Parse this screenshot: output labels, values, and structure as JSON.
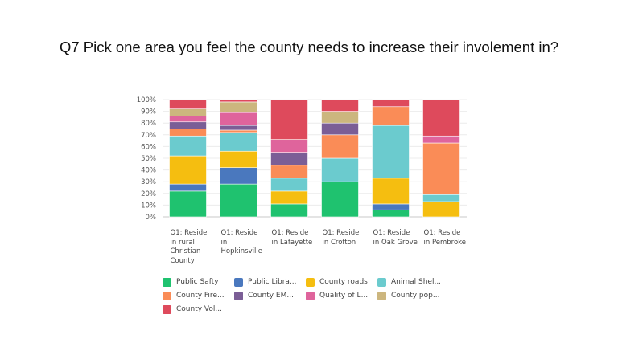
{
  "title": "Q7 Pick one area you feel the county needs to increase their involement in?",
  "chart_data": {
    "type": "bar",
    "stacked": true,
    "title": "Q7 Pick one area you feel the county needs to increase their involement in?",
    "ylim": [
      0,
      100
    ],
    "yticks": [
      "0%",
      "10%",
      "20%",
      "30%",
      "40%",
      "50%",
      "60%",
      "70%",
      "80%",
      "90%",
      "100%"
    ],
    "grid": true,
    "legend_position": "bottom",
    "categories": [
      "Q1: Reside in rural Christian County",
      "Q1: Reside in Hopkinsville",
      "Q1: Reside in Lafayette",
      "Q1: Reside in Crofton",
      "Q1: Reside in Oak Grove",
      "Q1: Reside in Pembroke"
    ],
    "series": [
      {
        "name": "Public Safty",
        "color": "#1FC26F",
        "values": [
          22,
          28,
          11,
          30,
          6,
          0
        ]
      },
      {
        "name": "Public Libra...",
        "color": "#4A78BE",
        "values": [
          6,
          14,
          0,
          0,
          5,
          0
        ]
      },
      {
        "name": "County roads",
        "color": "#F5BE10",
        "values": [
          24,
          14,
          11,
          0,
          22,
          13
        ]
      },
      {
        "name": "Animal Shel...",
        "color": "#6BCBCE",
        "values": [
          17,
          16,
          11,
          20,
          45,
          6
        ]
      },
      {
        "name": "County Fire...",
        "color": "#FA8C57",
        "values": [
          6,
          2,
          11,
          20,
          16,
          44
        ]
      },
      {
        "name": "County EM...",
        "color": "#7B5E96",
        "values": [
          6,
          4,
          11,
          10,
          0,
          0
        ]
      },
      {
        "name": "Quality of L...",
        "color": "#DF649C",
        "values": [
          5,
          11,
          11,
          0,
          0,
          6
        ]
      },
      {
        "name": "County pop...",
        "color": "#CCB67E",
        "values": [
          6,
          9,
          0,
          10,
          0,
          0
        ]
      },
      {
        "name": "County Vol...",
        "color": "#DE4A5C",
        "values": [
          8,
          2,
          34,
          10,
          6,
          31
        ]
      }
    ]
  }
}
